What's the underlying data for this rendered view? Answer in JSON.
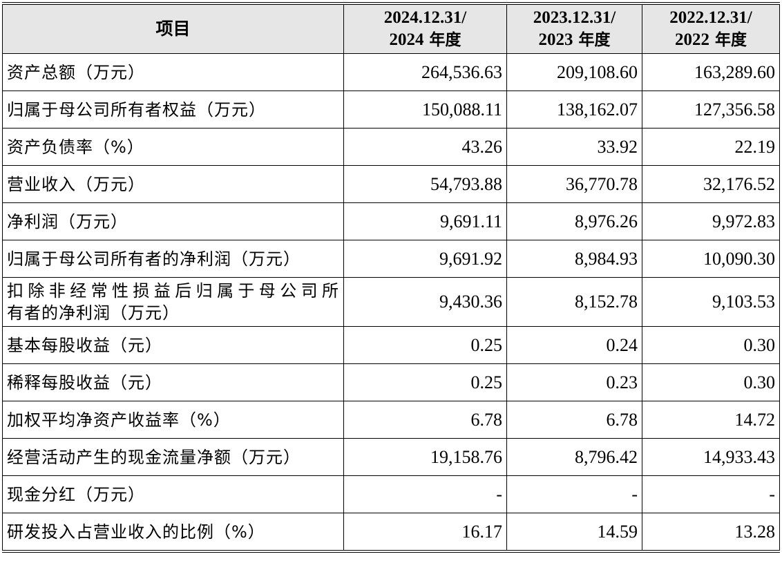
{
  "table": {
    "header": {
      "item_label": "项目",
      "columns": [
        {
          "line1": "2024.12.31/",
          "line2_year": "2024",
          "line2_suffix": " 年度"
        },
        {
          "line1": "2023.12.31/",
          "line2_year": "2023",
          "line2_suffix": " 年度"
        },
        {
          "line1": "2022.12.31/",
          "line2_year": "2022",
          "line2_suffix": " 年度"
        }
      ]
    },
    "rows": [
      {
        "label": "资产总额（万元）",
        "values": [
          "264,536.63",
          "209,108.60",
          "163,289.60"
        ]
      },
      {
        "label": "归属于母公司所有者权益（万元）",
        "values": [
          "150,088.11",
          "138,162.07",
          "127,356.58"
        ]
      },
      {
        "label": "资产负债率（%）",
        "values": [
          "43.26",
          "33.92",
          "22.19"
        ]
      },
      {
        "label": "营业收入（万元）",
        "values": [
          "54,793.88",
          "36,770.78",
          "32,176.52"
        ]
      },
      {
        "label": "净利润（万元）",
        "values": [
          "9,691.11",
          "8,976.26",
          "9,972.83"
        ]
      },
      {
        "label": "归属于母公司所有者的净利润（万元）",
        "values": [
          "9,691.92",
          "8,984.93",
          "10,090.30"
        ]
      },
      {
        "label_line1": "扣除非经常性损益后归属于母公司所",
        "label_line2": "有者的净利润（万元）",
        "values": [
          "9,430.36",
          "8,152.78",
          "9,103.53"
        ]
      },
      {
        "label": "基本每股收益（元）",
        "values": [
          "0.25",
          "0.24",
          "0.30"
        ]
      },
      {
        "label": "稀释每股收益（元）",
        "values": [
          "0.25",
          "0.23",
          "0.30"
        ]
      },
      {
        "label": "加权平均净资产收益率（%）",
        "values": [
          "6.78",
          "6.78",
          "14.72"
        ]
      },
      {
        "label": "经营活动产生的现金流量净额（万元）",
        "values": [
          "19,158.76",
          "8,796.42",
          "14,933.43"
        ]
      },
      {
        "label": "现金分红（万元）",
        "values": [
          "-",
          "-",
          "-"
        ]
      },
      {
        "label": "研发投入占营业收入的比例（%）",
        "values": [
          "16.17",
          "14.59",
          "13.28"
        ]
      }
    ]
  }
}
